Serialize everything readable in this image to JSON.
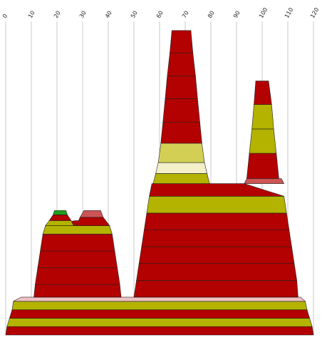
{
  "chart_data": {
    "type": "area",
    "x_ticks": [
      0,
      10,
      20,
      30,
      40,
      50,
      60,
      70,
      80,
      90,
      100,
      110,
      120
    ],
    "xlim": [
      0,
      120
    ],
    "grid": true,
    "colors": {
      "dark_red": "#b30000",
      "olive": "#b3b300",
      "light_olive": "#d3cf55",
      "cream": "#f3f0c8",
      "salmon": "#cc5555",
      "pink": "#f0c0c0",
      "green": "#1aa31a"
    },
    "layers": [
      {
        "color": "#b30000",
        "bottom": [
          [
            0,
            0
          ],
          [
            120,
            0
          ]
        ],
        "top": [
          [
            0.5,
            1
          ],
          [
            119.5,
            1
          ]
        ]
      },
      {
        "color": "#b3b300",
        "bottom": [
          [
            0.5,
            1
          ],
          [
            119.5,
            1
          ]
        ],
        "top": [
          [
            1.5,
            2
          ],
          [
            118.5,
            2
          ]
        ]
      },
      {
        "color": "#b30000",
        "bottom": [
          [
            1.5,
            2
          ],
          [
            118.5,
            2
          ]
        ],
        "top": [
          [
            2.5,
            3
          ],
          [
            117.5,
            3
          ]
        ]
      },
      {
        "color": "#b3b300",
        "bottom": [
          [
            2.5,
            3
          ],
          [
            117.5,
            3
          ]
        ],
        "top": [
          [
            3.0,
            4
          ],
          [
            116.8,
            4
          ]
        ]
      },
      {
        "color": "#f0c0c0",
        "bottom": [
          [
            3.0,
            4
          ],
          [
            116.8,
            4
          ]
        ],
        "top": [
          [
            6,
            4.5
          ],
          [
            115,
            4.5
          ]
        ]
      },
      {
        "color": "#b30000",
        "bottom": [
          [
            11,
            4.5
          ],
          [
            45,
            4.5
          ]
        ],
        "top": [
          [
            11.5,
            6
          ],
          [
            44.5,
            6
          ]
        ]
      },
      {
        "color": "#b30000",
        "bottom": [
          [
            11.5,
            6
          ],
          [
            44.5,
            6
          ]
        ],
        "top": [
          [
            12.5,
            8
          ],
          [
            43.5,
            8
          ]
        ]
      },
      {
        "color": "#b30000",
        "bottom": [
          [
            12.5,
            8
          ],
          [
            43.5,
            8
          ]
        ],
        "top": [
          [
            13.5,
            10
          ],
          [
            42.5,
            10
          ]
        ]
      },
      {
        "color": "#b30000",
        "bottom": [
          [
            13.5,
            10
          ],
          [
            42.5,
            10
          ]
        ],
        "top": [
          [
            14.5,
            12
          ],
          [
            41.5,
            12
          ]
        ]
      },
      {
        "color": "#b3b300",
        "bottom": [
          [
            14.5,
            12
          ],
          [
            41.5,
            12
          ]
        ],
        "top": [
          [
            15.5,
            13
          ],
          [
            40.5,
            13
          ]
        ]
      },
      {
        "color": "#b30000",
        "bottom": [
          [
            15.5,
            13
          ],
          [
            40.5,
            13
          ]
        ],
        "top": [
          [
            27,
            13.6
          ],
          [
            28,
            13.6
          ]
        ]
      },
      {
        "color": "#b3b300",
        "bottom": [
          [
            15.5,
            13
          ],
          [
            26.5,
            13
          ]
        ],
        "top": [
          [
            17,
            13.6
          ],
          [
            25.5,
            13.6
          ]
        ]
      },
      {
        "color": "#b30000",
        "bottom": [
          [
            17,
            13.6
          ],
          [
            25.5,
            13.6
          ]
        ],
        "top": [
          [
            18.5,
            14.3
          ],
          [
            24,
            14.3
          ]
        ]
      },
      {
        "color": "#1aa31a",
        "bottom": [
          [
            18.5,
            14.3
          ],
          [
            24,
            14.3
          ]
        ],
        "top": [
          [
            19,
            14.8
          ],
          [
            23.5,
            14.8
          ]
        ]
      },
      {
        "color": "#b30000",
        "bottom": [
          [
            27.5,
            13
          ],
          [
            40.5,
            13
          ]
        ],
        "top": [
          [
            29,
            14
          ],
          [
            38,
            14
          ]
        ]
      },
      {
        "color": "#cc5555",
        "bottom": [
          [
            29,
            14
          ],
          [
            38,
            14
          ]
        ],
        "top": [
          [
            30.5,
            14.8
          ],
          [
            37,
            14.8
          ]
        ]
      },
      {
        "color": "#b30000",
        "bottom": [
          [
            50,
            4.5
          ],
          [
            114,
            4.5
          ]
        ],
        "top": [
          [
            51,
            6.5
          ],
          [
            113.5,
            6.5
          ]
        ]
      },
      {
        "color": "#b30000",
        "bottom": [
          [
            51,
            6.5
          ],
          [
            113.5,
            6.5
          ]
        ],
        "top": [
          [
            52,
            8.5
          ],
          [
            112.5,
            8.5
          ]
        ]
      },
      {
        "color": "#b30000",
        "bottom": [
          [
            52,
            8.5
          ],
          [
            112.5,
            8.5
          ]
        ],
        "top": [
          [
            53,
            10.5
          ],
          [
            111.5,
            10.5
          ]
        ]
      },
      {
        "color": "#b30000",
        "bottom": [
          [
            53,
            10.5
          ],
          [
            111.5,
            10.5
          ]
        ],
        "top": [
          [
            54,
            12.5
          ],
          [
            110.5,
            12.5
          ]
        ]
      },
      {
        "color": "#b30000",
        "bottom": [
          [
            54,
            12.5
          ],
          [
            110.5,
            12.5
          ]
        ],
        "top": [
          [
            55,
            14.5
          ],
          [
            109.5,
            14.5
          ]
        ]
      },
      {
        "color": "#b3b300",
        "bottom": [
          [
            55,
            14.5
          ],
          [
            109.5,
            14.5
          ]
        ],
        "top": [
          [
            56,
            16.5
          ],
          [
            108.5,
            16.5
          ]
        ]
      },
      {
        "color": "#b30000",
        "bottom": [
          [
            56,
            16.5
          ],
          [
            108.5,
            16.5
          ]
        ],
        "top": [
          [
            57,
            18
          ],
          [
            93,
            18
          ]
        ]
      },
      {
        "color": "#cc5555",
        "bottom": [
          [
            93,
            18
          ],
          [
            108.5,
            18
          ]
        ],
        "top": [
          [
            94,
            18.6
          ],
          [
            107.5,
            18.6
          ]
        ]
      },
      {
        "color": "#b3b300",
        "bottom": [
          [
            57.5,
            18
          ],
          [
            79.5,
            18
          ]
        ],
        "top": [
          [
            58.5,
            19.2
          ],
          [
            78.5,
            19.2
          ]
        ]
      },
      {
        "color": "#f3f0c8",
        "bottom": [
          [
            58.5,
            19.2
          ],
          [
            78.5,
            19.2
          ]
        ],
        "top": [
          [
            59.5,
            20.5
          ],
          [
            77.5,
            20.5
          ]
        ]
      },
      {
        "color": "#d3cf55",
        "bottom": [
          [
            59.5,
            20.5
          ],
          [
            77.5,
            20.5
          ]
        ],
        "top": [
          [
            60.5,
            22.8
          ],
          [
            76.5,
            22.8
          ]
        ]
      },
      {
        "color": "#b30000",
        "bottom": [
          [
            60.5,
            22.8
          ],
          [
            76.5,
            22.8
          ]
        ],
        "top": [
          [
            61.3,
            25.3
          ],
          [
            75.7,
            25.3
          ]
        ]
      },
      {
        "color": "#b30000",
        "bottom": [
          [
            61.3,
            25.3
          ],
          [
            75.7,
            25.3
          ]
        ],
        "top": [
          [
            62.2,
            28.1
          ],
          [
            74.8,
            28.1
          ]
        ]
      },
      {
        "color": "#b30000",
        "bottom": [
          [
            62.2,
            28.1
          ],
          [
            74.8,
            28.1
          ]
        ],
        "top": [
          [
            63,
            30.8
          ],
          [
            74,
            30.8
          ]
        ]
      },
      {
        "color": "#b30000",
        "bottom": [
          [
            63,
            30.8
          ],
          [
            74,
            30.8
          ]
        ],
        "top": [
          [
            64,
            33.5
          ],
          [
            73,
            33.5
          ]
        ]
      },
      {
        "color": "#b30000",
        "bottom": [
          [
            64,
            33.5
          ],
          [
            73,
            33.5
          ]
        ],
        "top": [
          [
            64.8,
            36.2
          ],
          [
            72.2,
            36.2
          ]
        ]
      },
      {
        "color": "#b30000",
        "bottom": [
          [
            94,
            18.6
          ],
          [
            106.5,
            18.6
          ]
        ],
        "top": [
          [
            95,
            21.6
          ],
          [
            105.5,
            21.6
          ]
        ]
      },
      {
        "color": "#b3b300",
        "bottom": [
          [
            95,
            21.6
          ],
          [
            105.5,
            21.6
          ]
        ],
        "top": [
          [
            96,
            24.5
          ],
          [
            104.5,
            24.5
          ]
        ]
      },
      {
        "color": "#b3b300",
        "bottom": [
          [
            96,
            24.5
          ],
          [
            104.5,
            24.5
          ]
        ],
        "top": [
          [
            96.8,
            27.4
          ],
          [
            103.7,
            27.4
          ]
        ]
      },
      {
        "color": "#b30000",
        "bottom": [
          [
            96.8,
            27.4
          ],
          [
            103.7,
            27.4
          ]
        ],
        "top": [
          [
            97.5,
            30.2
          ],
          [
            102.5,
            30.2
          ]
        ]
      }
    ]
  }
}
